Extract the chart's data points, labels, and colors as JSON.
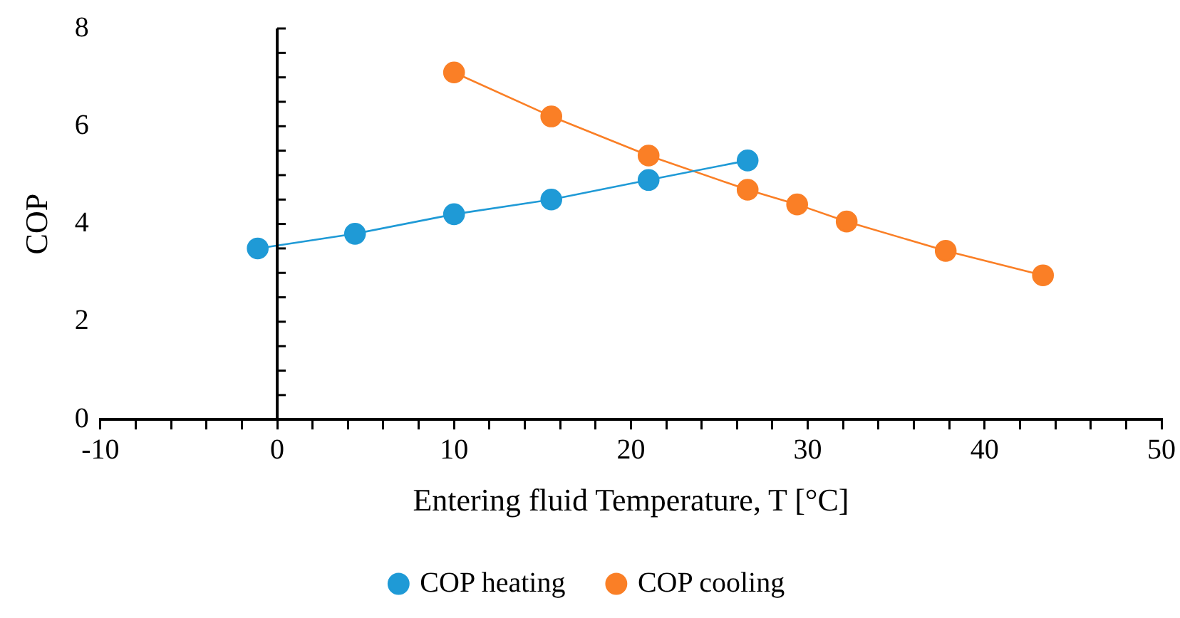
{
  "chart_data": {
    "type": "line",
    "xlabel": "Entering fluid Temperature, T [°C]",
    "ylabel": "COP",
    "xlim": [
      -10,
      50
    ],
    "ylim": [
      0,
      8
    ],
    "xticks": [
      -10,
      {
        "value": -8,
        "label": null
      },
      {
        "value": -6,
        "label": null
      },
      {
        "value": -4,
        "label": null
      },
      {
        "value": -2,
        "label": null
      },
      0,
      {
        "value": 2,
        "label": null
      },
      {
        "value": 4,
        "label": null
      },
      {
        "value": 6,
        "label": null
      },
      {
        "value": 8,
        "label": null
      },
      10,
      {
        "value": 12,
        "label": null
      },
      {
        "value": 14,
        "label": null
      },
      {
        "value": 16,
        "label": null
      },
      {
        "value": 18,
        "label": null
      },
      20,
      {
        "value": 22,
        "label": null
      },
      {
        "value": 24,
        "label": null
      },
      {
        "value": 26,
        "label": null
      },
      {
        "value": 28,
        "label": null
      },
      30,
      {
        "value": 32,
        "label": null
      },
      {
        "value": 34,
        "label": null
      },
      {
        "value": 36,
        "label": null
      },
      {
        "value": 38,
        "label": null
      },
      40,
      {
        "value": 42,
        "label": null
      },
      {
        "value": 44,
        "label": null
      },
      {
        "value": 46,
        "label": null
      },
      {
        "value": 48,
        "label": null
      },
      50
    ],
    "yticks": [
      0,
      {
        "value": 0.5,
        "label": null
      },
      {
        "value": 1,
        "label": null
      },
      {
        "value": 1.5,
        "label": null
      },
      2,
      {
        "value": 2.5,
        "label": null
      },
      {
        "value": 3,
        "label": null
      },
      {
        "value": 3.5,
        "label": null
      },
      4,
      {
        "value": 4.5,
        "label": null
      },
      {
        "value": 5,
        "label": null
      },
      {
        "value": 5.5,
        "label": null
      },
      6,
      {
        "value": 6.5,
        "label": null
      },
      {
        "value": 7,
        "label": null
      },
      {
        "value": 7.5,
        "label": null
      },
      8
    ],
    "marker": "circle",
    "line_style": "solid",
    "legend": "bottom",
    "series": [
      {
        "name": "COP heating",
        "color": "#1f9ad6",
        "x": [
          -1.1,
          4.4,
          10,
          15.5,
          21,
          26.6
        ],
        "values": [
          3.5,
          3.8,
          4.2,
          4.5,
          4.9,
          5.3
        ]
      },
      {
        "name": "COP cooling",
        "color": "#fa7f26",
        "x": [
          10,
          15.5,
          21,
          26.6,
          29.4,
          32.2,
          37.8,
          43.3
        ],
        "values": [
          7.1,
          6.2,
          5.4,
          4.7,
          4.4,
          4.05,
          3.45,
          2.95
        ]
      }
    ]
  }
}
